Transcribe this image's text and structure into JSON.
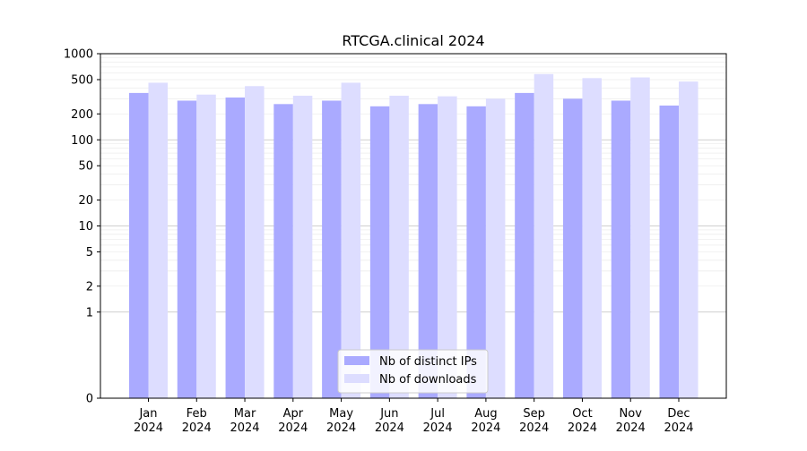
{
  "chart_data": {
    "type": "bar",
    "title": "RTCGA.clinical 2024",
    "xlabel": "",
    "ylabel": "",
    "y_scale": "symlog",
    "yticks": [
      0,
      1,
      2,
      5,
      10,
      20,
      50,
      100,
      200,
      500,
      1000
    ],
    "ytick_labels": [
      "0",
      "1",
      "2",
      "5",
      "10",
      "20",
      "50",
      "100",
      "200",
      "500",
      "1000"
    ],
    "ylim": [
      0,
      1000
    ],
    "grid": true,
    "legend_position": "bottom-center",
    "categories": [
      [
        "Jan",
        "2024"
      ],
      [
        "Feb",
        "2024"
      ],
      [
        "Mar",
        "2024"
      ],
      [
        "Apr",
        "2024"
      ],
      [
        "May",
        "2024"
      ],
      [
        "Jun",
        "2024"
      ],
      [
        "Jul",
        "2024"
      ],
      [
        "Aug",
        "2024"
      ],
      [
        "Sep",
        "2024"
      ],
      [
        "Oct",
        "2024"
      ],
      [
        "Nov",
        "2024"
      ],
      [
        "Dec",
        "2024"
      ]
    ],
    "series": [
      {
        "name": "Nb of distinct IPs",
        "color": "#aaaaff",
        "values": [
          350,
          285,
          310,
          260,
          285,
          245,
          260,
          245,
          350,
          300,
          285,
          250
        ]
      },
      {
        "name": "Nb of downloads",
        "color": "#ddddff",
        "values": [
          460,
          335,
          420,
          325,
          460,
          325,
          320,
          300,
          580,
          520,
          530,
          475
        ]
      }
    ]
  }
}
